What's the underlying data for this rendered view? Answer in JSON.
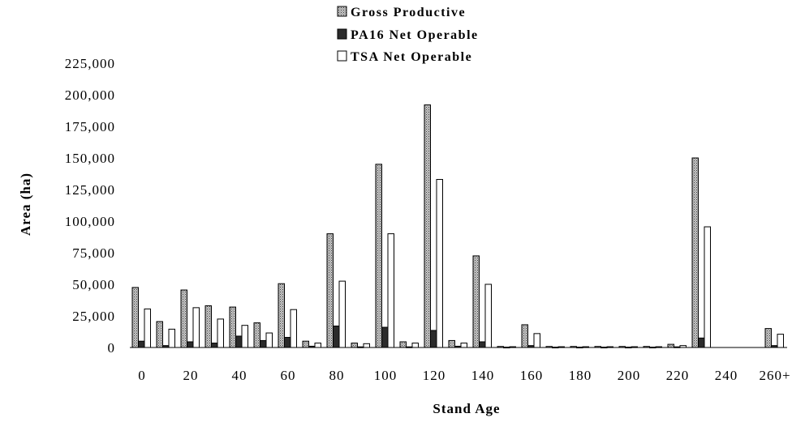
{
  "chart_data": {
    "type": "bar",
    "xlabel": "Stand Age",
    "ylabel": "Area (ha)",
    "ylim": [
      0,
      225000
    ],
    "yticks": [
      "0",
      "25,000",
      "50,000",
      "75,000",
      "100,000",
      "125,000",
      "150,000",
      "175,000",
      "200,000",
      "225,000"
    ],
    "categories": [
      "0",
      "10",
      "20",
      "30",
      "40",
      "50",
      "60",
      "70",
      "80",
      "90",
      "100",
      "110",
      "120",
      "130",
      "140",
      "150",
      "160",
      "170",
      "180",
      "190",
      "200",
      "210",
      "220",
      "230",
      "240",
      "250",
      "260+"
    ],
    "x_tick_labels": [
      "0",
      "20",
      "40",
      "60",
      "80",
      "100",
      "120",
      "140",
      "160",
      "180",
      "200",
      "220",
      "240",
      "260+"
    ],
    "legend_position": "top-center",
    "grid": false,
    "series": [
      {
        "name": "Gross Productive",
        "pattern": "dotted-gray",
        "color": "#a0a0a0",
        "values": [
          47500,
          20500,
          45500,
          33000,
          32000,
          19500,
          50500,
          5000,
          90000,
          3500,
          145000,
          4500,
          192000,
          5500,
          72500,
          800,
          18000,
          800,
          800,
          800,
          800,
          800,
          2500,
          150000,
          0,
          0,
          15000
        ]
      },
      {
        "name": "PA16 Net Operable",
        "pattern": "solid-dark",
        "color": "#2b2b2b",
        "values": [
          5000,
          1500,
          4500,
          3500,
          9000,
          5500,
          8000,
          1000,
          17000,
          500,
          16000,
          500,
          13500,
          1000,
          4500,
          300,
          1500,
          300,
          300,
          300,
          300,
          300,
          500,
          7500,
          0,
          0,
          1500
        ]
      },
      {
        "name": "TSA Net Operable",
        "pattern": "white",
        "color": "#ffffff",
        "values": [
          30500,
          14500,
          31500,
          22500,
          17500,
          11500,
          30000,
          3500,
          52500,
          3000,
          90000,
          3500,
          133000,
          3500,
          50000,
          600,
          11000,
          600,
          600,
          600,
          600,
          600,
          1500,
          95500,
          0,
          0,
          10500
        ]
      }
    ]
  }
}
